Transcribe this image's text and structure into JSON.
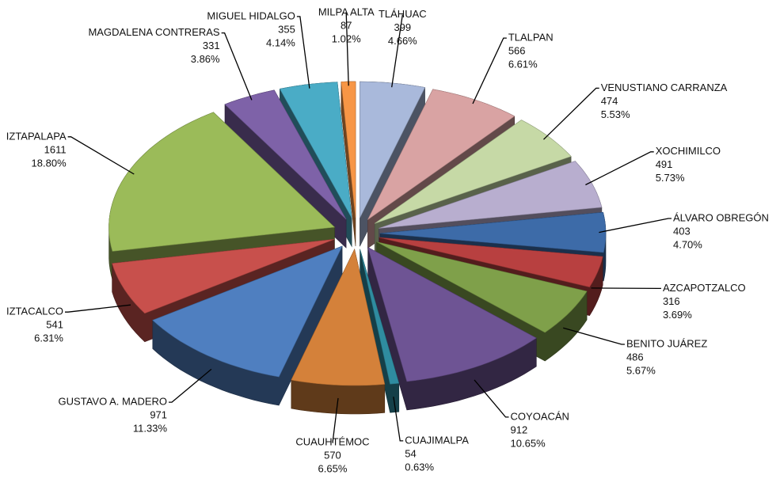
{
  "chart_data": {
    "type": "pie3d",
    "categories": [
      "TLÁHUAC",
      "TLALPAN",
      "VENUSTIANO CARRANZA",
      "XOCHIMILCO",
      "ÁLVARO OBREGÓN",
      "AZCAPOTZALCO",
      "BENITO JUÁREZ",
      "COYOACÁN",
      "CUAJIMALPA",
      "CUAUHTÉMOC",
      "GUSTAVO A. MADERO",
      "IZTACALCO",
      "IZTAPALAPA",
      "MAGDALENA CONTRERAS",
      "MIGUEL HIDALGO",
      "MILPA ALTA"
    ],
    "values": [
      399,
      566,
      474,
      491,
      403,
      316,
      486,
      912,
      54,
      570,
      971,
      541,
      1611,
      331,
      355,
      87
    ],
    "percent_labels": [
      "4.66%",
      "6.61%",
      "5.53%",
      "5.73%",
      "4.70%",
      "3.69%",
      "5.67%",
      "10.65%",
      "0.63%",
      "6.65%",
      "11.33%",
      "6.31%",
      "18.80%",
      "3.86%",
      "4.14%",
      "1.02%"
    ],
    "colors": [
      "#a9b9db",
      "#d9a3a3",
      "#c6d9a6",
      "#b8aecf",
      "#3d6ba8",
      "#b84040",
      "#7fa04a",
      "#6e5494",
      "#2f8ca0",
      "#d4813a",
      "#4f7fc0",
      "#c8504c",
      "#9bbb59",
      "#7e62a8",
      "#4aacc6",
      "#f79646"
    ]
  }
}
